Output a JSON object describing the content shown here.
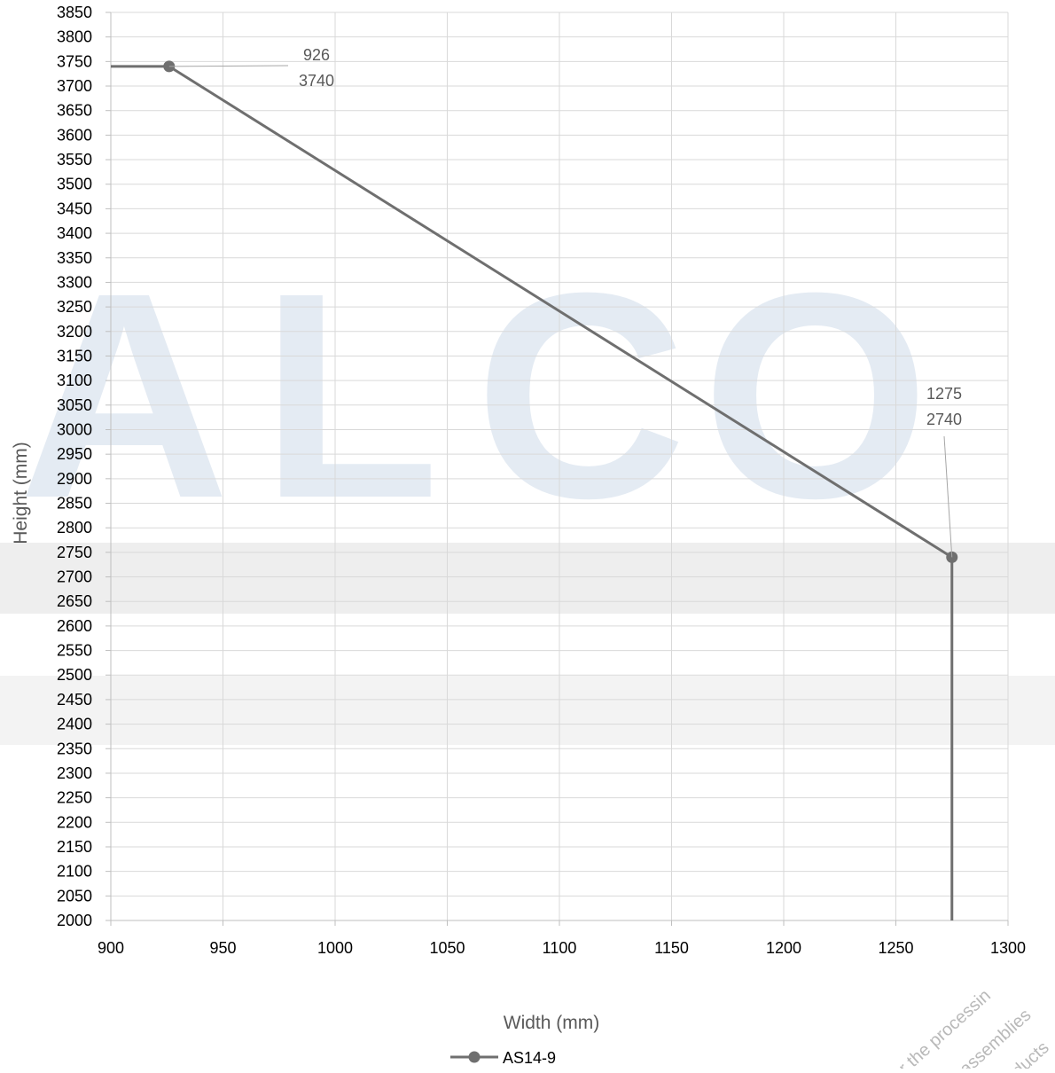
{
  "chart_data": {
    "type": "line",
    "title": "",
    "xlabel": "Width (mm)",
    "ylabel": "Height (mm)",
    "xlim": [
      900,
      1300
    ],
    "ylim": [
      2000,
      3850
    ],
    "x_ticks": [
      900,
      950,
      1000,
      1050,
      1100,
      1150,
      1200,
      1250,
      1300
    ],
    "y_ticks": [
      2000,
      2050,
      2100,
      2150,
      2200,
      2250,
      2300,
      2350,
      2400,
      2450,
      2500,
      2550,
      2600,
      2650,
      2700,
      2750,
      2800,
      2850,
      2900,
      2950,
      3000,
      3050,
      3100,
      3150,
      3200,
      3250,
      3300,
      3350,
      3400,
      3450,
      3500,
      3550,
      3600,
      3650,
      3700,
      3750,
      3800,
      3850
    ],
    "grid": true,
    "legend": {
      "position": "bottom"
    },
    "series": [
      {
        "name": "AS14-9",
        "color": "#6f6f6f",
        "line": [
          {
            "x": 900,
            "y": 3740
          },
          {
            "x": 926,
            "y": 3740
          },
          {
            "x": 1275,
            "y": 2740
          },
          {
            "x": 1275,
            "y": 2000
          }
        ],
        "markers": [
          {
            "x": 926,
            "y": 3740
          },
          {
            "x": 1275,
            "y": 2740
          }
        ]
      }
    ],
    "annotations": [
      {
        "x": 926,
        "y": 3740,
        "text_x": "926",
        "text_y": "3740"
      },
      {
        "x": 1275,
        "y": 2740,
        "text_x": "1275",
        "text_y": "2740"
      }
    ]
  },
  "watermark": {
    "letters": [
      "A",
      "L",
      "C",
      "O"
    ],
    "diagonal_lines": [
      "ication for the processin",
      "door assemblies",
      "roducts"
    ],
    "color": "#dbe4ef"
  }
}
